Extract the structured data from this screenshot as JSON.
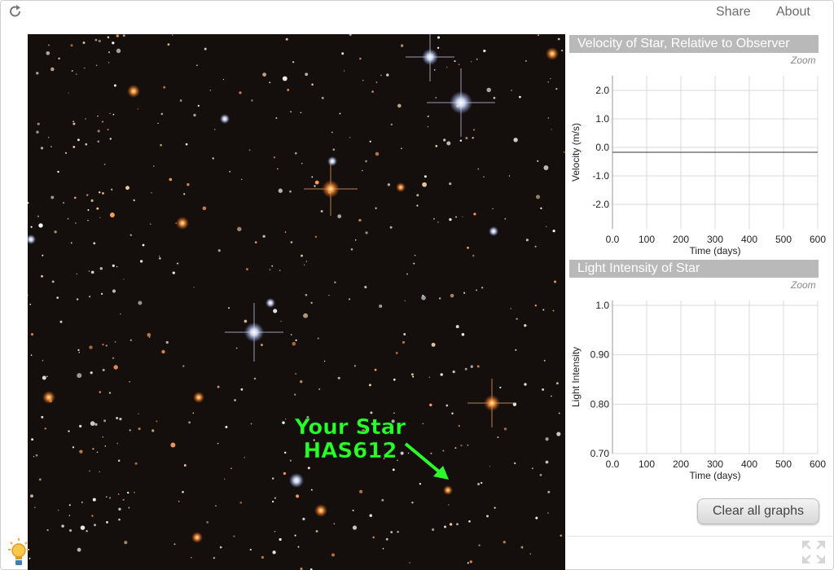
{
  "header": {
    "share_label": "Share",
    "about_label": "About",
    "reload_icon": "reload-icon"
  },
  "sky_image": {
    "annotation_line1": "Your Star",
    "annotation_line2": "HAS612",
    "annotation_color": "#2aff2a",
    "arrow_icon": "arrow-icon"
  },
  "velocity_graph": {
    "title": "Velocity of Star, Relative to Observer",
    "zoom_label": "Zoom",
    "xlabel": "Time (days)",
    "ylabel": "Velocity (m/s)",
    "x_ticks": [
      "0.0",
      "100",
      "200",
      "300",
      "400",
      "500",
      "600"
    ],
    "y_ticks": [
      "2.0",
      "1.0",
      "0.0",
      "-1.0",
      "-2.0"
    ]
  },
  "intensity_graph": {
    "title": "Light Intensity of Star",
    "zoom_label": "Zoom",
    "xlabel": "Time (days)",
    "ylabel": "Light Intensity",
    "x_ticks": [
      "0.0",
      "100",
      "200",
      "300",
      "400",
      "500",
      "600"
    ],
    "y_ticks": [
      "1.0",
      "0.90",
      "0.80",
      "0.70"
    ]
  },
  "clear_button_label": "Clear all graphs",
  "footer": {
    "bulb_icon": "lightbulb-icon",
    "expand_icon": "expand-icon"
  }
}
